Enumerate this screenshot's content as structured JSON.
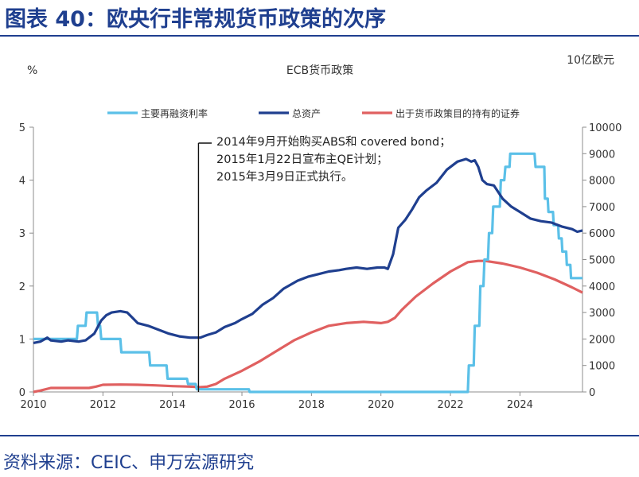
{
  "figure_title": "图表 40：欧央行非常规货币政策的次序",
  "source_note": "资料来源：CEIC、申万宏源研究",
  "colors": {
    "policy_rate": "#5bc0e8",
    "total_assets": "#1f3f8f",
    "securities": "#e06060",
    "heading": "#1f3f8f"
  },
  "chart_data": {
    "type": "line",
    "title": "ECB货币政策",
    "left_axis_unit": "%",
    "right_axis_unit": "10亿欧元",
    "xlim": [
      2010,
      2025.8
    ],
    "x_ticks": [
      2010,
      2012,
      2014,
      2016,
      2018,
      2020,
      2022,
      2024
    ],
    "ylim_left": [
      0,
      5
    ],
    "y_ticks_left": [
      0,
      1,
      2,
      3,
      4,
      5
    ],
    "ylim_right": [
      0,
      10000
    ],
    "y_ticks_right": [
      0,
      1000,
      2000,
      3000,
      4000,
      5000,
      6000,
      7000,
      8000,
      9000,
      10000
    ],
    "legend_position": "top",
    "grid": false,
    "series": [
      {
        "name": "主要再融资利率",
        "axis": "left",
        "points": [
          [
            2010.0,
            1.0
          ],
          [
            2011.25,
            1.0
          ],
          [
            2011.28,
            1.25
          ],
          [
            2011.5,
            1.25
          ],
          [
            2011.53,
            1.5
          ],
          [
            2011.83,
            1.5
          ],
          [
            2011.86,
            1.25
          ],
          [
            2011.92,
            1.25
          ],
          [
            2011.95,
            1.0
          ],
          [
            2012.5,
            1.0
          ],
          [
            2012.53,
            0.75
          ],
          [
            2013.33,
            0.75
          ],
          [
            2013.36,
            0.5
          ],
          [
            2013.83,
            0.5
          ],
          [
            2013.86,
            0.25
          ],
          [
            2014.42,
            0.25
          ],
          [
            2014.45,
            0.15
          ],
          [
            2014.67,
            0.15
          ],
          [
            2014.7,
            0.05
          ],
          [
            2016.2,
            0.05
          ],
          [
            2016.22,
            0.0
          ],
          [
            2022.5,
            0.0
          ],
          [
            2022.53,
            0.5
          ],
          [
            2022.67,
            0.5
          ],
          [
            2022.7,
            1.25
          ],
          [
            2022.83,
            1.25
          ],
          [
            2022.86,
            2.0
          ],
          [
            2022.95,
            2.0
          ],
          [
            2022.98,
            2.5
          ],
          [
            2023.08,
            2.5
          ],
          [
            2023.11,
            3.0
          ],
          [
            2023.2,
            3.0
          ],
          [
            2023.23,
            3.5
          ],
          [
            2023.42,
            3.5
          ],
          [
            2023.45,
            4.0
          ],
          [
            2023.55,
            4.0
          ],
          [
            2023.58,
            4.25
          ],
          [
            2023.7,
            4.25
          ],
          [
            2023.72,
            4.5
          ],
          [
            2024.42,
            4.5
          ],
          [
            2024.45,
            4.25
          ],
          [
            2024.7,
            4.25
          ],
          [
            2024.72,
            3.65
          ],
          [
            2024.8,
            3.65
          ],
          [
            2024.82,
            3.4
          ],
          [
            2024.95,
            3.4
          ],
          [
            2024.97,
            3.15
          ],
          [
            2025.1,
            3.15
          ],
          [
            2025.12,
            2.9
          ],
          [
            2025.2,
            2.9
          ],
          [
            2025.22,
            2.65
          ],
          [
            2025.33,
            2.65
          ],
          [
            2025.35,
            2.4
          ],
          [
            2025.45,
            2.4
          ],
          [
            2025.47,
            2.15
          ],
          [
            2025.8,
            2.15
          ]
        ]
      },
      {
        "name": "总资产",
        "axis": "right",
        "points": [
          [
            2010.0,
            1850
          ],
          [
            2010.2,
            1900
          ],
          [
            2010.4,
            2050
          ],
          [
            2010.5,
            1950
          ],
          [
            2010.8,
            1900
          ],
          [
            2011.0,
            1950
          ],
          [
            2011.3,
            1900
          ],
          [
            2011.5,
            1950
          ],
          [
            2011.75,
            2200
          ],
          [
            2011.95,
            2700
          ],
          [
            2012.1,
            2900
          ],
          [
            2012.25,
            3000
          ],
          [
            2012.5,
            3050
          ],
          [
            2012.7,
            3000
          ],
          [
            2012.85,
            2800
          ],
          [
            2013.0,
            2600
          ],
          [
            2013.3,
            2500
          ],
          [
            2013.6,
            2350
          ],
          [
            2013.9,
            2200
          ],
          [
            2014.2,
            2100
          ],
          [
            2014.5,
            2050
          ],
          [
            2014.8,
            2050
          ],
          [
            2015.0,
            2150
          ],
          [
            2015.25,
            2250
          ],
          [
            2015.5,
            2450
          ],
          [
            2015.8,
            2600
          ],
          [
            2016.0,
            2750
          ],
          [
            2016.3,
            2950
          ],
          [
            2016.6,
            3300
          ],
          [
            2016.9,
            3550
          ],
          [
            2017.2,
            3900
          ],
          [
            2017.6,
            4200
          ],
          [
            2017.9,
            4350
          ],
          [
            2018.2,
            4450
          ],
          [
            2018.5,
            4550
          ],
          [
            2018.8,
            4600
          ],
          [
            2019.0,
            4650
          ],
          [
            2019.3,
            4700
          ],
          [
            2019.6,
            4650
          ],
          [
            2019.9,
            4700
          ],
          [
            2020.1,
            4700
          ],
          [
            2020.2,
            4650
          ],
          [
            2020.35,
            5200
          ],
          [
            2020.5,
            6200
          ],
          [
            2020.7,
            6500
          ],
          [
            2020.9,
            6900
          ],
          [
            2021.1,
            7350
          ],
          [
            2021.3,
            7600
          ],
          [
            2021.6,
            7900
          ],
          [
            2021.9,
            8400
          ],
          [
            2022.2,
            8700
          ],
          [
            2022.45,
            8800
          ],
          [
            2022.6,
            8700
          ],
          [
            2022.7,
            8750
          ],
          [
            2022.8,
            8500
          ],
          [
            2022.92,
            8000
          ],
          [
            2023.05,
            7850
          ],
          [
            2023.25,
            7800
          ],
          [
            2023.5,
            7300
          ],
          [
            2023.75,
            7000
          ],
          [
            2024.0,
            6800
          ],
          [
            2024.3,
            6550
          ],
          [
            2024.6,
            6450
          ],
          [
            2024.9,
            6400
          ],
          [
            2025.2,
            6250
          ],
          [
            2025.5,
            6150
          ],
          [
            2025.65,
            6050
          ],
          [
            2025.8,
            6100
          ]
        ]
      },
      {
        "name": "出于货币政策目的持有的证券",
        "axis": "right",
        "points": [
          [
            2010.0,
            0
          ],
          [
            2010.2,
            50
          ],
          [
            2010.5,
            150
          ],
          [
            2011.0,
            150
          ],
          [
            2011.6,
            150
          ],
          [
            2011.8,
            200
          ],
          [
            2012.0,
            270
          ],
          [
            2012.5,
            280
          ],
          [
            2013.0,
            270
          ],
          [
            2013.5,
            250
          ],
          [
            2014.0,
            220
          ],
          [
            2014.5,
            200
          ],
          [
            2014.8,
            180
          ],
          [
            2015.0,
            200
          ],
          [
            2015.25,
            300
          ],
          [
            2015.5,
            500
          ],
          [
            2016.0,
            800
          ],
          [
            2016.5,
            1150
          ],
          [
            2017.0,
            1550
          ],
          [
            2017.5,
            1950
          ],
          [
            2018.0,
            2250
          ],
          [
            2018.5,
            2500
          ],
          [
            2019.0,
            2600
          ],
          [
            2019.5,
            2650
          ],
          [
            2020.0,
            2600
          ],
          [
            2020.2,
            2650
          ],
          [
            2020.4,
            2800
          ],
          [
            2020.6,
            3100
          ],
          [
            2021.0,
            3600
          ],
          [
            2021.5,
            4100
          ],
          [
            2022.0,
            4550
          ],
          [
            2022.5,
            4900
          ],
          [
            2022.8,
            4950
          ],
          [
            2023.0,
            4950
          ],
          [
            2023.5,
            4850
          ],
          [
            2024.0,
            4700
          ],
          [
            2024.5,
            4500
          ],
          [
            2025.0,
            4250
          ],
          [
            2025.5,
            3950
          ],
          [
            2025.8,
            3750
          ]
        ]
      }
    ],
    "annotation": {
      "x": 2014.75,
      "lines": [
        "2014年9月开始购买ABS和 covered bond；",
        "2015年1月22日宣布主QE计划；",
        "2015年3月9日正式执行。"
      ]
    }
  }
}
